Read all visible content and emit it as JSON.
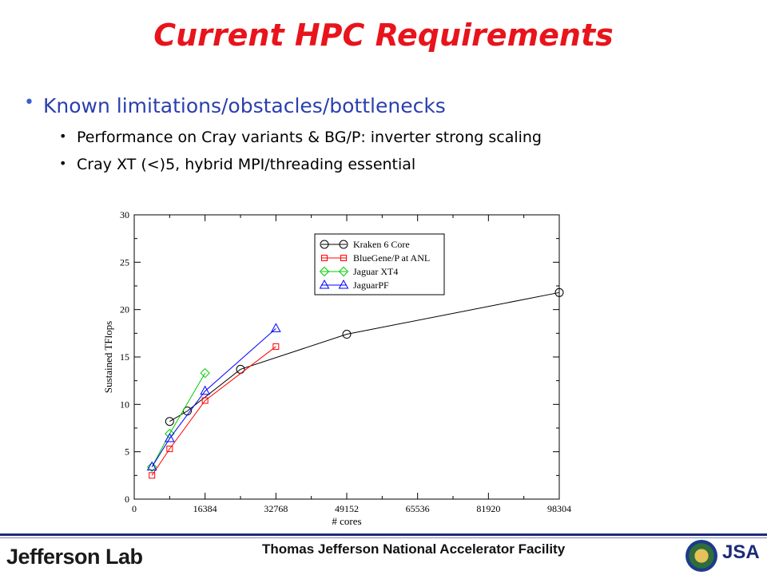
{
  "slide": {
    "title": "Current HPC Requirements",
    "bullet_main": "Known limitations/obstacles/bottlenecks",
    "sub_bullets": [
      "Performance on Cray variants & BG/P: inverter strong scaling",
      "Cray XT (<)5, hybrid MPI/threading essential"
    ]
  },
  "footer": {
    "logo_text": "Jefferson Lab",
    "facility": "Thomas Jefferson National Accelerator Facility",
    "partner_logo": "JSA",
    "seal_icon": "doe-seal-icon"
  },
  "chart_data": {
    "type": "line",
    "title": "",
    "xlabel": "# cores",
    "ylabel": "Sustained TFlops",
    "xlim": [
      0,
      98304
    ],
    "ylim": [
      0,
      30
    ],
    "xticks": [
      0,
      16384,
      32768,
      49152,
      65536,
      81920,
      98304
    ],
    "yticks": [
      0,
      5,
      10,
      15,
      20,
      25,
      30
    ],
    "legend_position": "top-center",
    "series": [
      {
        "name": "Kraken 6 Core",
        "color": "#000000",
        "marker": "circle",
        "x": [
          8192,
          12288,
          24576,
          49152,
          98304
        ],
        "y": [
          8.2,
          9.3,
          13.7,
          17.4,
          21.8
        ]
      },
      {
        "name": "BlueGene/P at ANL",
        "color": "#ff0000",
        "marker": "square",
        "x": [
          4096,
          8192,
          16384,
          32768
        ],
        "y": [
          2.5,
          5.3,
          10.4,
          16.1
        ]
      },
      {
        "name": "Jaguar XT4",
        "color": "#00cc00",
        "marker": "diamond",
        "x": [
          4096,
          8192,
          16384
        ],
        "y": [
          3.4,
          6.9,
          13.3
        ]
      },
      {
        "name": "JaguarPF",
        "color": "#0000ff",
        "marker": "triangle",
        "x": [
          4096,
          8192,
          16384,
          32768
        ],
        "y": [
          3.4,
          6.4,
          11.4,
          18.0
        ]
      }
    ]
  }
}
